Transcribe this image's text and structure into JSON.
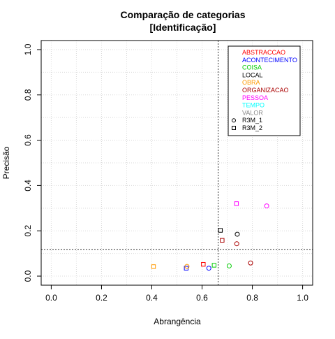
{
  "chart_data": {
    "type": "scatter",
    "title": "Comparação de categorias",
    "subtitle": "[Identificação]",
    "xlabel": "Abrangência",
    "ylabel": "Precisão",
    "xlim": [
      -0.04,
      1.04
    ],
    "ylim": [
      -0.04,
      1.04
    ],
    "xticks": [
      "0.0",
      "0.2",
      "0.4",
      "0.6",
      "0.8",
      "1.0"
    ],
    "yticks": [
      "0.0",
      "0.2",
      "0.4",
      "0.6",
      "0.8",
      "1.0"
    ],
    "xtick_values": [
      0,
      0.2,
      0.4,
      0.6,
      0.8,
      1.0
    ],
    "ytick_values": [
      0,
      0.2,
      0.4,
      0.6,
      0.8,
      1.0
    ],
    "grid": true,
    "reference_lines": {
      "vertical_x": 0.664,
      "horizontal_y": 0.118
    },
    "legend_position": "top-right",
    "categories": [
      {
        "name": "ABSTRACCAO",
        "color": "#ff0000"
      },
      {
        "name": "ACONTECIMENTO",
        "color": "#0000ff"
      },
      {
        "name": "COISA",
        "color": "#00cc00"
      },
      {
        "name": "LOCAL",
        "color": "#000000"
      },
      {
        "name": "OBRA",
        "color": "#ff9900"
      },
      {
        "name": "ORGANIZACAO",
        "color": "#aa0000"
      },
      {
        "name": "PESSOA",
        "color": "#ff00ff"
      },
      {
        "name": "TEMPO",
        "color": "#00ffff"
      },
      {
        "name": "VALOR",
        "color": "#888888"
      }
    ],
    "markers": [
      {
        "name": "R3M_1",
        "shape": "circle"
      },
      {
        "name": "R3M_2",
        "shape": "square"
      }
    ],
    "points": [
      {
        "category": "ABSTRACCAO",
        "marker": "square",
        "x": 0.605,
        "y": 0.052
      },
      {
        "category": "ACONTECIMENTO",
        "marker": "circle",
        "x": 0.627,
        "y": 0.035
      },
      {
        "category": "ACONTECIMENTO",
        "marker": "square",
        "x": 0.537,
        "y": 0.035
      },
      {
        "category": "COISA",
        "marker": "circle",
        "x": 0.708,
        "y": 0.045
      },
      {
        "category": "COISA",
        "marker": "square",
        "x": 0.648,
        "y": 0.048
      },
      {
        "category": "LOCAL",
        "marker": "circle",
        "x": 0.74,
        "y": 0.185
      },
      {
        "category": "LOCAL",
        "marker": "square",
        "x": 0.673,
        "y": 0.202
      },
      {
        "category": "OBRA",
        "marker": "circle",
        "x": 0.54,
        "y": 0.043
      },
      {
        "category": "OBRA",
        "marker": "square",
        "x": 0.407,
        "y": 0.042
      },
      {
        "category": "ORGANIZACAO",
        "marker": "circle",
        "x": 0.793,
        "y": 0.058
      },
      {
        "category": "ORGANIZACAO",
        "marker": "circle",
        "x": 0.738,
        "y": 0.143
      },
      {
        "category": "ORGANIZACAO",
        "marker": "square",
        "x": 0.68,
        "y": 0.158
      },
      {
        "category": "PESSOA",
        "marker": "circle",
        "x": 0.857,
        "y": 0.31
      },
      {
        "category": "PESSOA",
        "marker": "square",
        "x": 0.737,
        "y": 0.32
      }
    ]
  }
}
